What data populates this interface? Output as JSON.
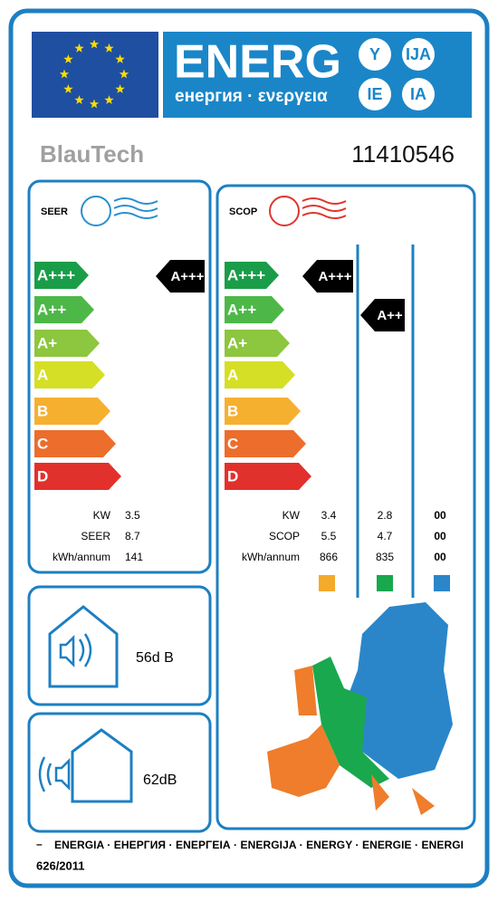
{
  "header": {
    "word": "ENERG",
    "suffixes": [
      "Y",
      "IJA",
      "IE",
      "IA"
    ],
    "subtitle": "енергия · ενεργεια"
  },
  "brand": "BlauTech",
  "model": "11410546",
  "cooling": {
    "label": "SEER",
    "classes": [
      "A+++",
      "A++",
      "A+",
      "A",
      "B",
      "C",
      "D"
    ],
    "rating": "A+++",
    "rows": [
      [
        "KW",
        "3.5"
      ],
      [
        "SEER",
        "8.7"
      ],
      [
        "kWh/annum",
        "141"
      ]
    ]
  },
  "heating": {
    "label": "SCOP",
    "classes": [
      "A+++",
      "A++",
      "A+",
      "A",
      "B",
      "C",
      "D"
    ],
    "ratings": [
      "A+++",
      "A++"
    ],
    "rows": [
      [
        "KW",
        "3.4",
        "2.8",
        "00"
      ],
      [
        "SCOP",
        "5.5",
        "4.7",
        "00"
      ],
      [
        "kWh/annum",
        "866",
        "835",
        "00"
      ]
    ]
  },
  "noise": {
    "indoor": "56d B",
    "outdoor": "62dB"
  },
  "footer": {
    "languages": "ENERGIA · ЕНЕРГИЯ · ΕΝΕΡΓΕΙΑ · ENERGIJA · ENERGY · ENERGIE · ENERGI",
    "regulation": "626/2011"
  }
}
